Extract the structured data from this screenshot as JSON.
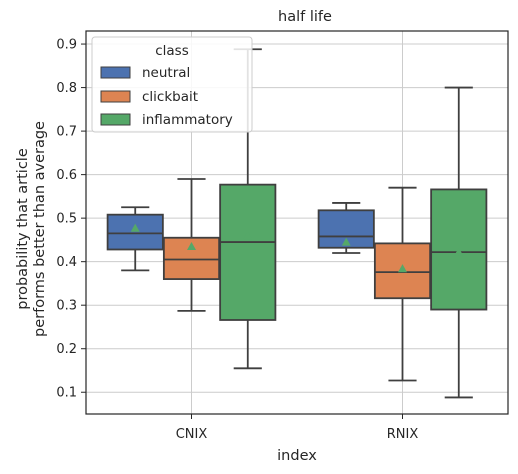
{
  "chart_data": {
    "type": "boxplot",
    "title": "half life",
    "xlabel": "index",
    "ylabel_lines": [
      "probability that article",
      "performs better than average"
    ],
    "categories": [
      "CNIX",
      "RNIX"
    ],
    "ylim": [
      0.05,
      0.93
    ],
    "yticks": [
      0.1,
      0.2,
      0.3,
      0.4,
      0.5,
      0.6,
      0.7,
      0.8,
      0.9
    ],
    "ytick_labels": [
      "0.1",
      "0.2",
      "0.3",
      "0.4",
      "0.5",
      "0.6",
      "0.7",
      "0.8",
      "0.9"
    ],
    "grid": true,
    "legend": {
      "title": "class",
      "placement": "top-left"
    },
    "series": [
      {
        "name": "neutral",
        "color": "#4c72b0",
        "boxes": [
          {
            "whisker_low": 0.38,
            "q1": 0.428,
            "median": 0.465,
            "q3": 0.508,
            "whisker_high": 0.525,
            "mean": 0.477
          },
          {
            "whisker_low": 0.42,
            "q1": 0.432,
            "median": 0.458,
            "q3": 0.518,
            "whisker_high": 0.535,
            "mean": 0.445
          }
        ]
      },
      {
        "name": "clickbait",
        "color": "#dd8452",
        "boxes": [
          {
            "whisker_low": 0.287,
            "q1": 0.36,
            "median": 0.405,
            "q3": 0.455,
            "whisker_high": 0.59,
            "mean": 0.435
          },
          {
            "whisker_low": 0.127,
            "q1": 0.316,
            "median": 0.376,
            "q3": 0.442,
            "whisker_high": 0.57,
            "mean": 0.384
          }
        ]
      },
      {
        "name": "inflammatory",
        "color": "#55a868",
        "boxes": [
          {
            "whisker_low": 0.155,
            "q1": 0.266,
            "median": 0.445,
            "q3": 0.577,
            "whisker_high": 0.888,
            "mean": 0.46
          },
          {
            "whisker_low": 0.088,
            "q1": 0.29,
            "median": 0.422,
            "q3": 0.566,
            "whisker_high": 0.8,
            "mean": 0.422
          }
        ]
      }
    ],
    "line_color": "#3f3f3f",
    "mean_marker_color": "#55a868",
    "grid_color": "#cccccc",
    "spine_color": "#262626"
  }
}
